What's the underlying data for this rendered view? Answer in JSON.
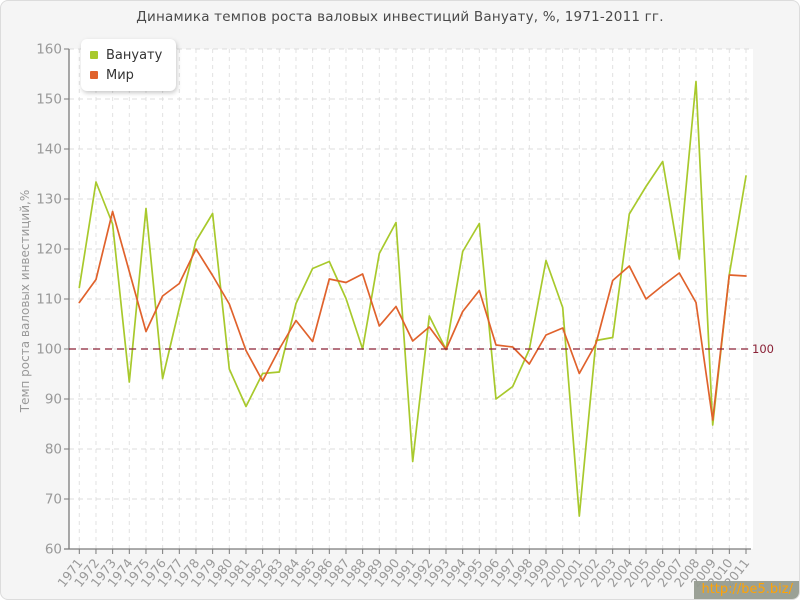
{
  "watermark": {
    "text": "http://be5.biz/"
  },
  "chart_data": {
    "type": "line",
    "title": "Динамика темпов роста валовых инвестиций Вануату, %, 1971-2011 гг.",
    "ylabel": "Темп роста валовых инвестиций,%",
    "xlabel": "",
    "ylim": [
      60,
      160
    ],
    "ytick_step": 10,
    "grid": true,
    "legend_position": "top-left",
    "reference_line": {
      "value": 100,
      "label": "100",
      "color": "#8a2136"
    },
    "axis_color": "#7a7a7a",
    "tick_label_color": "#999999",
    "x": [
      1971,
      1972,
      1973,
      1974,
      1975,
      1976,
      1977,
      1978,
      1979,
      1980,
      1981,
      1982,
      1983,
      1984,
      1985,
      1986,
      1987,
      1988,
      1989,
      1990,
      1991,
      1992,
      1993,
      1994,
      1995,
      1996,
      1997,
      1998,
      1999,
      2000,
      2001,
      2002,
      2003,
      2004,
      2005,
      2006,
      2007,
      2008,
      2009,
      2010,
      2011
    ],
    "series": [
      {
        "name": "Вануату",
        "color": "#a8c92c",
        "values": [
          112.3,
          133.4,
          125.0,
          93.4,
          128.1,
          94.1,
          108.2,
          121.6,
          127.1,
          96.0,
          88.5,
          95.1,
          95.4,
          109.1,
          116.1,
          117.5,
          110.1,
          100.0,
          119.1,
          125.3,
          77.5,
          106.6,
          99.9,
          119.5,
          125.1,
          90.0,
          92.5,
          99.9,
          117.7,
          108.3,
          66.6,
          101.7,
          102.3,
          127.0,
          132.5,
          137.5,
          118.0,
          153.5,
          84.8,
          114.9,
          134.6
        ]
      },
      {
        "name": "Мир",
        "color": "#e0622c",
        "values": [
          109.3,
          113.9,
          127.5,
          115.5,
          103.5,
          110.6,
          113.1,
          120.0,
          114.7,
          109.0,
          99.7,
          93.6,
          100.0,
          105.7,
          101.5,
          114.0,
          113.3,
          115.0,
          104.6,
          108.5,
          101.6,
          104.4,
          99.9,
          107.5,
          111.7,
          100.8,
          100.4,
          97.0,
          102.8,
          104.2,
          95.1,
          101.1,
          113.7,
          116.6,
          110.0,
          112.7,
          115.2,
          109.3,
          85.8,
          114.8,
          114.6
        ]
      }
    ]
  }
}
